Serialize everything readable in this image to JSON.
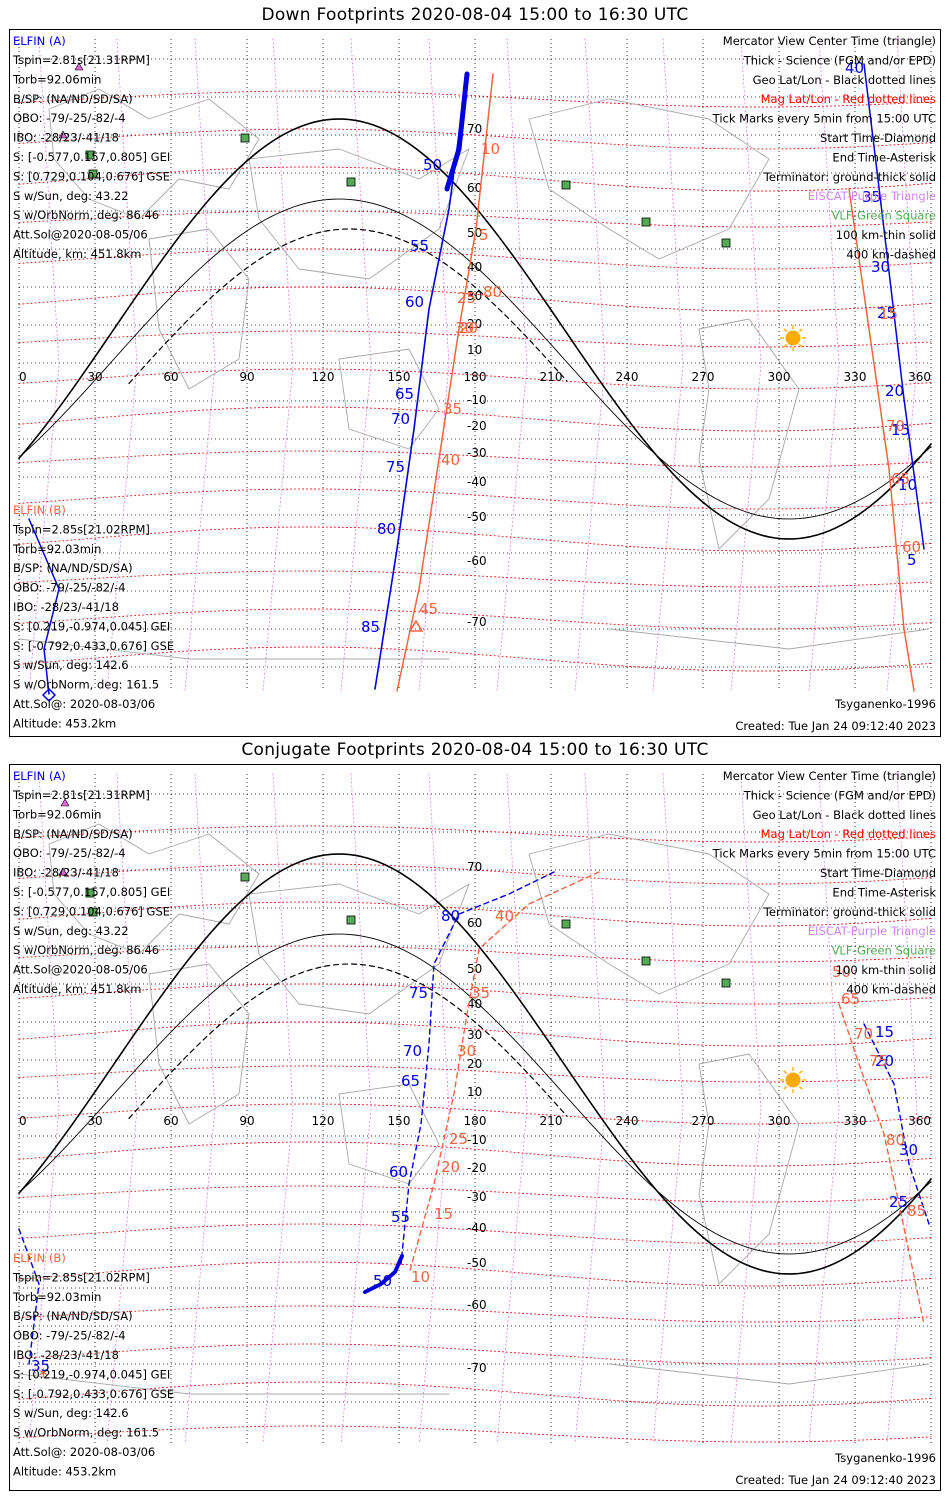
{
  "panels": [
    {
      "title": "Down Footprints 2020-08-04 15:00 to 16:30 UTC",
      "elfin_a": {
        "name": "ELFIN (A)",
        "lines": [
          "Tspin=2.81s[21.31RPM]",
          "Torb=92.06min",
          "B/SP: (NA/ND/SD/SA)",
          "OBO: -79/-25/-82/-4",
          "IBO: -28/23/-41/18",
          "S: [-0.577,0.157,0.805] GEI",
          "S: [0.729,0.104,0.676] GSE",
          "S w/Sun, deg: 43.22",
          "S w/OrbNorm, deg: 86.46",
          "Att.Sol@2020-08-05/06",
          "Altitude, km: 451.8km"
        ]
      },
      "elfin_b": {
        "name": "ELFIN (B)",
        "lines": [
          "Tspin=2.85s[21.02RPM]",
          "Torb=92.03min",
          "B/SP: (NA/ND/SD/SA)",
          "OBO: -79/-25/-82/-4",
          "IBO: -28/23/-41/18",
          "S: [0.219,-0.974,0.045] GEI",
          "S: [-0.792,0.433,0.676] GSE",
          "S w/Sun, deg: 142.6",
          "S w/OrbNorm, deg: 161.5",
          "Att.Sol@: 2020-08-03/06",
          "Altitude: 453.2km"
        ]
      },
      "legend": [
        {
          "text": "Mercator View Center Time (triangle)",
          "color": "#000000"
        },
        {
          "text": "Thick - Science (FGM and/or EPD)",
          "color": "#000000"
        },
        {
          "text": "Geo Lat/Lon - Black dotted lines",
          "color": "#000000"
        },
        {
          "text": "Mag Lat/Lon - Red dotted lines",
          "color": "#ff0000"
        },
        {
          "text": "Tick Marks every 5min from 15:00 UTC",
          "color": "#000000"
        },
        {
          "text": "Start Time-Diamond",
          "color": "#000000"
        },
        {
          "text": "End Time-Asterisk",
          "color": "#000000"
        },
        {
          "text": "Terminator: ground-thick solid",
          "color": "#000000"
        },
        {
          "text": "EISCAT-Purple Triangle",
          "color": "#cc88ee"
        },
        {
          "text": "VLF-Green Square",
          "color": "#55aa55"
        },
        {
          "text": "100 km-thin solid",
          "color": "#000000"
        },
        {
          "text": "400 km-dashed",
          "color": "#000000"
        }
      ],
      "footer_left": "Tsyganenko-1996",
      "footer_right": "Created: Tue Jan 24 09:12:40 2023",
      "lon_ticks": [
        "0",
        "30",
        "60",
        "90",
        "120",
        "150",
        "180",
        "210",
        "240",
        "270",
        "300",
        "330",
        "360"
      ],
      "lat_ticks": [
        "70",
        "60",
        "50",
        "40",
        "30",
        "20",
        "10",
        "-10",
        "-20",
        "-30",
        "-40",
        "-50",
        "-60",
        "-70"
      ],
      "track_a_labels": [
        "50",
        "55",
        "60",
        "65",
        "70",
        "75",
        "80",
        "85",
        "40",
        "35",
        "30",
        "25",
        "20",
        "15",
        "10",
        "5"
      ],
      "track_b_labels": [
        "10",
        "5",
        "25",
        "30",
        "35",
        "40",
        "45",
        "20",
        "80",
        "70",
        "65",
        "60",
        "15"
      ]
    },
    {
      "title": "Conjugate Footprints 2020-08-04 15:00 to 16:30 UTC",
      "elfin_a": {
        "name": "ELFIN (A)",
        "lines": [
          "Tspin=2.81s[21.31RPM]",
          "Torb=92.06min",
          "B/SP: (NA/ND/SD/SA)",
          "OBO: -79/-25/-82/-4",
          "IBO: -28/23/-41/18",
          "S: [-0.577,0.157,0.805] GEI",
          "S: [0.729,0.104,0.676] GSE",
          "S w/Sun, deg: 43.22",
          "S w/OrbNorm, deg: 86.46",
          "Att.Sol@2020-08-05/06",
          "Altitude, km: 451.8km"
        ]
      },
      "elfin_b": {
        "name": "ELFIN (B)",
        "lines": [
          "Tspin=2.85s[21.02RPM]",
          "Torb=92.03min",
          "B/SP: (NA/ND/SD/SA)",
          "OBO: -79/-25/-82/-4",
          "IBO: -28/23/-41/18",
          "S: [0.219,-0.974,0.045] GEI",
          "S: [-0.792,0.433,0.676] GSE",
          "S w/Sun, deg: 142.6",
          "S w/OrbNorm, deg: 161.5",
          "Att.Sol@: 2020-08-03/06",
          "Altitude: 453.2km"
        ]
      },
      "legend": [
        {
          "text": "Mercator View Center Time (triangle)",
          "color": "#000000"
        },
        {
          "text": "Thick - Science (FGM and/or EPD)",
          "color": "#000000"
        },
        {
          "text": "Geo Lat/Lon - Black dotted lines",
          "color": "#000000"
        },
        {
          "text": "Mag Lat/Lon - Red dotted lines",
          "color": "#ff0000"
        },
        {
          "text": "Tick Marks every 5min from 15:00 UTC",
          "color": "#000000"
        },
        {
          "text": "Start Time-Diamond",
          "color": "#000000"
        },
        {
          "text": "End Time-Asterisk",
          "color": "#000000"
        },
        {
          "text": "Terminator: ground-thick solid",
          "color": "#000000"
        },
        {
          "text": "EISCAT-Purple Triangle",
          "color": "#cc88ee"
        },
        {
          "text": "VLF-Green Square",
          "color": "#55aa55"
        },
        {
          "text": "100 km-thin solid",
          "color": "#000000"
        },
        {
          "text": "400 km-dashed",
          "color": "#000000"
        }
      ],
      "footer_left": "Tsyganenko-1996",
      "footer_right": "Created: Tue Jan 24 09:12:40 2023",
      "lon_ticks": [
        "0",
        "30",
        "60",
        "90",
        "120",
        "150",
        "180",
        "210",
        "240",
        "270",
        "300",
        "330",
        "360"
      ],
      "lat_ticks": [
        "70",
        "60",
        "50",
        "40",
        "30",
        "20",
        "10",
        "-10",
        "-20",
        "-30",
        "-40",
        "-50",
        "-60",
        "-70"
      ],
      "track_a_labels": [
        "80",
        "75",
        "70",
        "65",
        "60",
        "55",
        "50",
        "35",
        "15",
        "20",
        "25",
        "30"
      ],
      "track_b_labels": [
        "40",
        "35",
        "30",
        "25",
        "20",
        "15",
        "10",
        "50",
        "65",
        "70",
        "75",
        "80",
        "85"
      ]
    }
  ],
  "colors": {
    "elfin_a": "#0000dd",
    "elfin_b": "#ee6644",
    "mag_grid": "#ff0000",
    "eiscat": "#dd66dd",
    "vlf": "#55aa55",
    "sun": "#ffaa00",
    "geo_grid": "#000000",
    "coast": "#a8a8a8"
  }
}
